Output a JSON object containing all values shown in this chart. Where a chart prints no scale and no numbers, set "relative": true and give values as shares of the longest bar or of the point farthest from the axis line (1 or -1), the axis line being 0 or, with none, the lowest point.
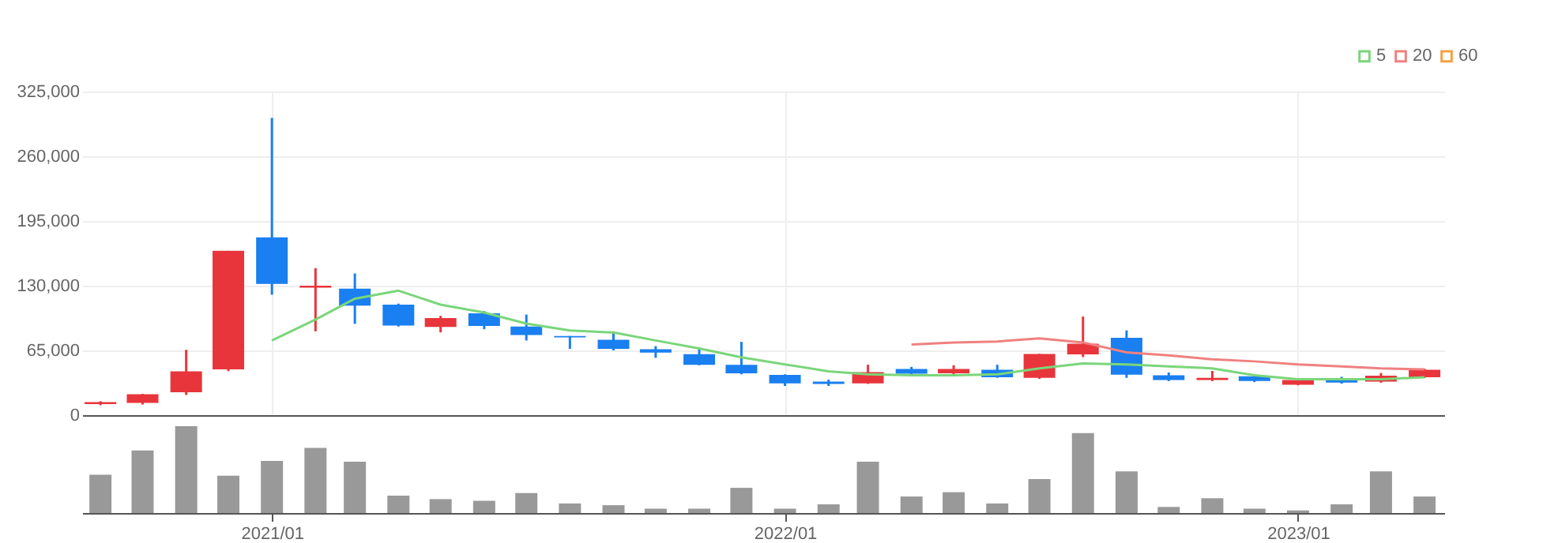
{
  "chart_data": [
    {
      "type": "candlestick",
      "x": [
        "2020-09",
        "2020-10",
        "2020-11",
        "2020-12",
        "2021-01",
        "2021-02",
        "2021-03",
        "2021-04",
        "2021-05",
        "2021-06",
        "2021-07",
        "2021-08",
        "2021-09",
        "2021-10",
        "2021-11",
        "2021-12",
        "2022-01",
        "2022-02",
        "2022-03",
        "2022-04",
        "2022-05",
        "2022-06",
        "2022-07",
        "2022-08",
        "2022-09",
        "2022-10",
        "2022-11",
        "2022-12",
        "2023-01",
        "2023-02",
        "2023-03",
        "2023-04"
      ],
      "ohlc": [
        [
          11000,
          14000,
          10000,
          13000
        ],
        [
          12300,
          21300,
          10700,
          21000
        ],
        [
          23000,
          65600,
          20300,
          44000
        ],
        [
          46000,
          165000,
          44200,
          165000
        ],
        [
          178600,
          298500,
          121000,
          131700
        ],
        [
          128000,
          147600,
          84200,
          130000
        ],
        [
          127000,
          142300,
          91700,
          110000
        ],
        [
          111000,
          112000,
          89000,
          90000
        ],
        [
          88500,
          99700,
          83100,
          97500
        ],
        [
          102300,
          104500,
          86300,
          89500
        ],
        [
          89000,
          101000,
          75000,
          80500
        ],
        [
          79500,
          79500,
          66600,
          78000
        ],
        [
          75700,
          83700,
          65000,
          66600
        ],
        [
          66100,
          69300,
          57600,
          62900
        ],
        [
          61300,
          68200,
          50100,
          50600
        ],
        [
          50600,
          73600,
          41000,
          42100
        ],
        [
          40500,
          41000,
          29300,
          32000
        ],
        [
          33600,
          35700,
          29300,
          31400
        ],
        [
          32000,
          50600,
          31400,
          43200
        ],
        [
          46400,
          48500,
          38900,
          41600
        ],
        [
          42000,
          50100,
          41000,
          46400
        ],
        [
          45500,
          50600,
          37500,
          38000
        ],
        [
          37500,
          61500,
          36400,
          61500
        ],
        [
          61000,
          99000,
          58300,
          71700
        ],
        [
          77600,
          85100,
          37500,
          40700
        ],
        [
          40100,
          42800,
          34200,
          35300
        ],
        [
          35300,
          44400,
          34200,
          37500
        ],
        [
          39100,
          40700,
          33200,
          34200
        ],
        [
          30500,
          35300,
          30000,
          35300
        ],
        [
          35800,
          38500,
          31600,
          32600
        ],
        [
          33700,
          42300,
          32600,
          39600
        ],
        [
          38000,
          46500,
          37500,
          45500
        ]
      ],
      "colors": [
        "#e8353b",
        "#e8353b",
        "#e8353b",
        "#e8353b",
        "#1a7ff0",
        "#e8353b",
        "#1a7ff0",
        "#1a7ff0",
        "#e8353b",
        "#1a7ff0",
        "#1a7ff0",
        "#1a7ff0",
        "#1a7ff0",
        "#1a7ff0",
        "#1a7ff0",
        "#1a7ff0",
        "#1a7ff0",
        "#1a7ff0",
        "#e8353b",
        "#1a7ff0",
        "#e8353b",
        "#1a7ff0",
        "#e8353b",
        "#e8353b",
        "#1a7ff0",
        "#1a7ff0",
        "#e8353b",
        "#1a7ff0",
        "#e8353b",
        "#1a7ff0",
        "#e8353b",
        "#e8353b"
      ],
      "series": [
        {
          "name": "5",
          "type": "line",
          "color": "#7ad67a",
          "values": [
            null,
            null,
            null,
            null,
            75000,
            96000,
            117000,
            125000,
            111000,
            103000,
            92000,
            85000,
            83000,
            75000,
            67000,
            58000,
            51000,
            44000,
            41000,
            40000,
            40000,
            41000,
            47000,
            52000,
            51000,
            49000,
            47000,
            40000,
            36000,
            36000,
            36000,
            38000
          ]
        },
        {
          "name": "20",
          "type": "line",
          "color": "#f08080",
          "values": [
            null,
            null,
            null,
            null,
            null,
            null,
            null,
            null,
            null,
            null,
            null,
            null,
            null,
            null,
            null,
            null,
            null,
            null,
            null,
            71000,
            73000,
            74000,
            77000,
            73000,
            63000,
            60000,
            56000,
            54000,
            51000,
            49000,
            47000,
            46000
          ]
        },
        {
          "name": "60",
          "type": "line",
          "color": "#f5a142",
          "values": [
            null,
            null,
            null,
            null,
            null,
            null,
            null,
            null,
            null,
            null,
            null,
            null,
            null,
            null,
            null,
            null,
            null,
            null,
            null,
            null,
            null,
            null,
            null,
            null,
            null,
            null,
            null,
            null,
            null,
            null,
            null,
            null
          ]
        }
      ],
      "xlim": [
        "2020-08-19",
        "2023-04-15"
      ],
      "xticks": [
        {
          "value": "2021-01",
          "label": null
        },
        {
          "value": "2022-01",
          "label": null
        },
        {
          "value": "2023-01",
          "label": null
        }
      ],
      "ylim": [
        0,
        325000
      ],
      "yticks": [
        {
          "value": 0,
          "label": "0"
        },
        {
          "value": 65000,
          "label": "65,000"
        },
        {
          "value": 130000,
          "label": "130,000"
        },
        {
          "value": 195000,
          "label": "195,000"
        },
        {
          "value": 260000,
          "label": "260,000"
        },
        {
          "value": 325000,
          "label": "325,000"
        }
      ],
      "grid": true,
      "legend": "top right",
      "tick_labels": "y"
    },
    {
      "type": "bar",
      "relative": true,
      "color": "#999999",
      "x": [
        "2020-09",
        "2020-10",
        "2020-11",
        "2020-12",
        "2021-01",
        "2021-02",
        "2021-03",
        "2021-04",
        "2021-05",
        "2021-06",
        "2021-07",
        "2021-08",
        "2021-09",
        "2021-10",
        "2021-11",
        "2021-12",
        "2022-01",
        "2022-02",
        "2022-03",
        "2022-04",
        "2022-05",
        "2022-06",
        "2022-07",
        "2022-08",
        "2022-09",
        "2022-10",
        "2022-11",
        "2022-12",
        "2023-01",
        "2023-02",
        "2023-03",
        "2023-04"
      ],
      "values": [
        0.44,
        0.72,
        1,
        0.43,
        0.6,
        0.75,
        0.59,
        0.2,
        0.16,
        0.14,
        0.23,
        0.11,
        0.09,
        0.05,
        0.05,
        0.29,
        0.05,
        0.1,
        0.59,
        0.19,
        0.24,
        0.11,
        0.39,
        0.92,
        0.48,
        0.07,
        0.17,
        0.05,
        0.03,
        0.1,
        0.48,
        0.19
      ],
      "xlim": [
        "2020-08-19",
        "2023-04-15"
      ],
      "xticks": [
        {
          "value": "2021-01",
          "label": "2021/01"
        },
        {
          "value": "2022-01",
          "label": "2022/01"
        },
        {
          "value": "2023-01",
          "label": "2023/01"
        }
      ],
      "tick_labels": "x"
    }
  ]
}
